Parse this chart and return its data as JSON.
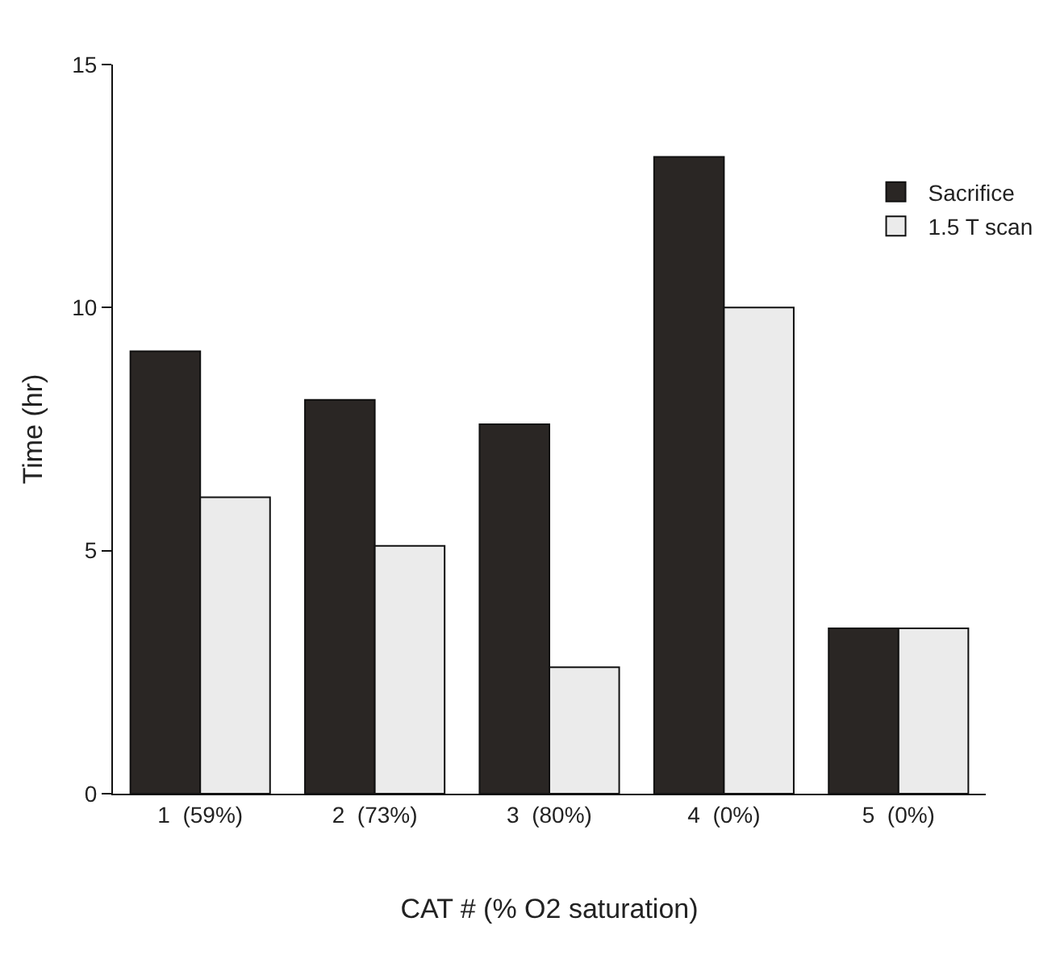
{
  "chart_data": {
    "type": "bar",
    "xlabel": "CAT # (% O2 saturation)",
    "ylabel": "Time (hr)",
    "categories": [
      "1  (59%)",
      "2  (73%)",
      "3  (80%)",
      "4  (0%)",
      "5  (0%)"
    ],
    "series": [
      {
        "name": "Sacrifice",
        "color": "#2a2624",
        "values": [
          9.1,
          8.1,
          7.6,
          13.1,
          3.4
        ]
      },
      {
        "name": "1.5 T scan",
        "color": "#ebebeb",
        "values": [
          6.1,
          5.1,
          2.6,
          10.0,
          3.4
        ]
      }
    ],
    "ylim": [
      0,
      15
    ],
    "yticks": [
      0,
      5,
      10,
      15
    ],
    "grid": false,
    "legend": "top right"
  }
}
